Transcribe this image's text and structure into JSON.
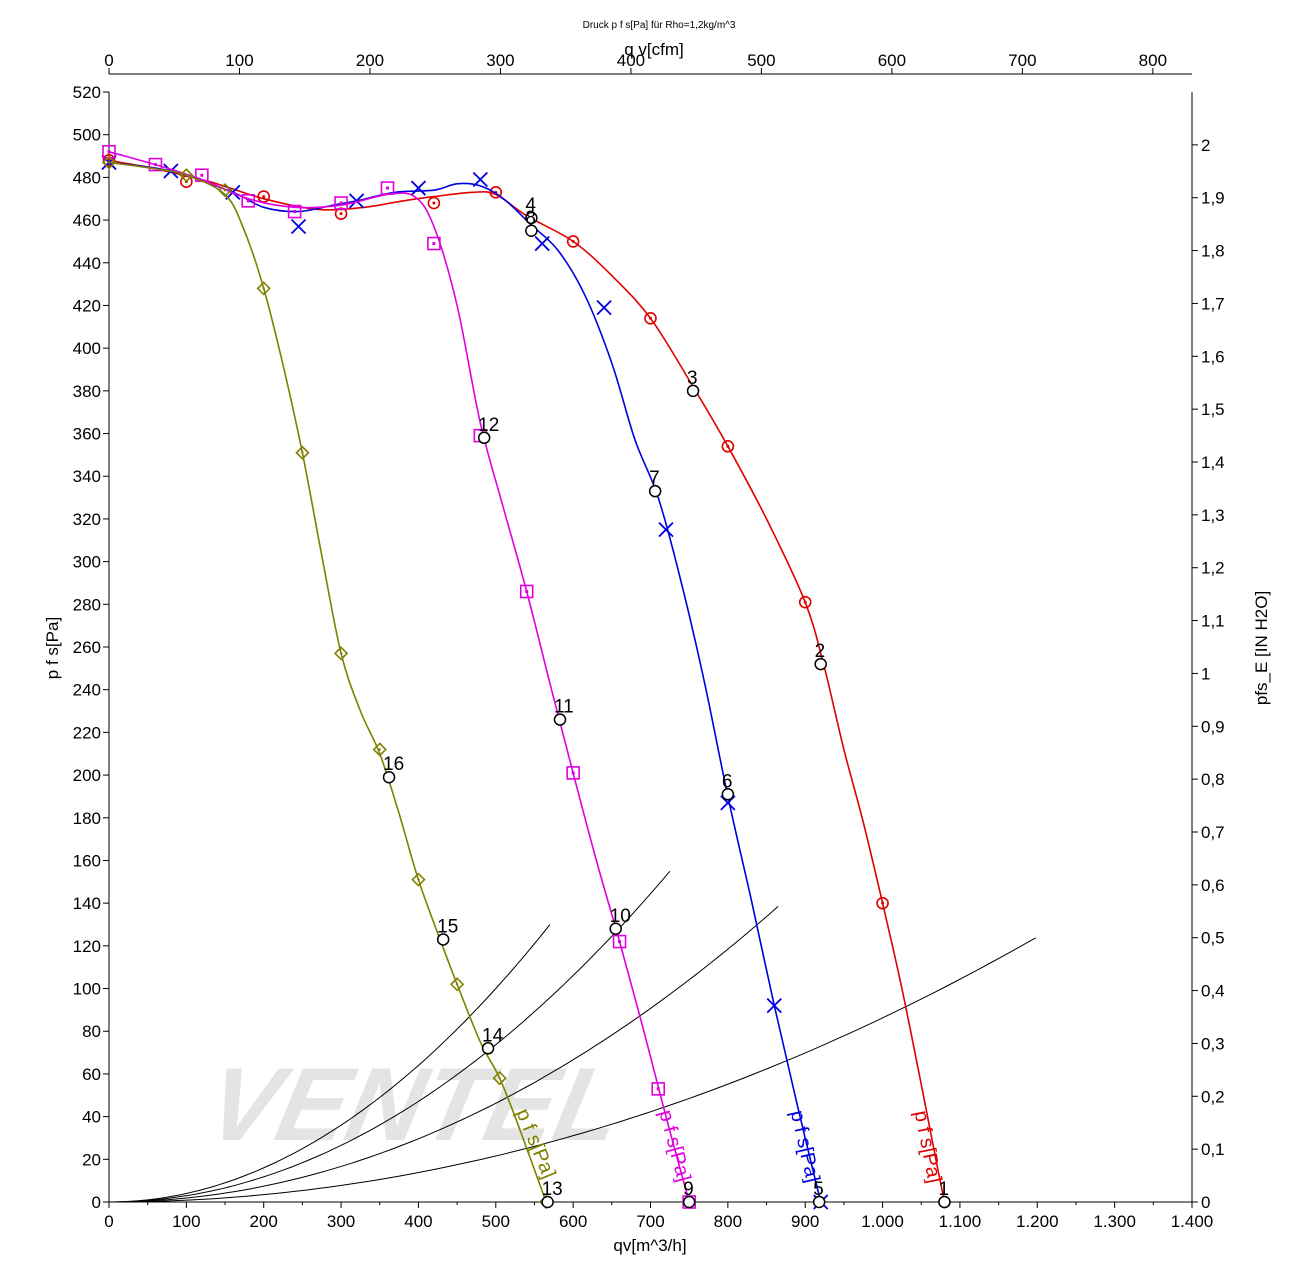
{
  "chart_data": {
    "type": "line",
    "title": "Druck p f s[Pa] für Rho=1,2kg/m^3",
    "xlabel": "qv[m^3/h]",
    "ylabel": "p f s[Pa]",
    "top_xlabel": "q v[cfm]",
    "right_ylabel": "pfs_E [IN H2O]",
    "watermark": "VENTEL",
    "xlim": [
      0,
      1400
    ],
    "ylim": [
      0,
      520
    ],
    "top_xlim": [
      0,
      830
    ],
    "right_ylim": [
      0,
      2.1
    ],
    "x_ticks": [
      "0",
      "100",
      "200",
      "300",
      "400",
      "500",
      "600",
      "700",
      "800",
      "900",
      "1.000",
      "1.100",
      "1.200",
      "1.300",
      "1.400"
    ],
    "y_ticks": [
      "0",
      "20",
      "40",
      "60",
      "80",
      "100",
      "120",
      "140",
      "160",
      "180",
      "200",
      "220",
      "240",
      "260",
      "280",
      "300",
      "320",
      "340",
      "360",
      "380",
      "400",
      "420",
      "440",
      "460",
      "480",
      "500",
      "520"
    ],
    "top_ticks": [
      "0",
      "100",
      "200",
      "300",
      "400",
      "500",
      "600",
      "700",
      "800"
    ],
    "right_ticks": [
      "0",
      "0,1",
      "0,2",
      "0,3",
      "0,4",
      "0,5",
      "0,6",
      "0,7",
      "0,8",
      "0,9",
      "1",
      "1,1",
      "1,2",
      "1,3",
      "1,4",
      "1,5",
      "1,6",
      "1,7",
      "1,8",
      "1,9",
      "2"
    ],
    "grid": false,
    "series": [
      {
        "label": "p f s[Pa]",
        "color": "#e00000",
        "marker": "circle-dot",
        "x": [
          0,
          100,
          200,
          300,
          420,
          500,
          600,
          700,
          800,
          900,
          1000,
          1080
        ],
        "y": [
          488,
          478,
          471,
          463,
          468,
          473,
          450,
          414,
          354,
          281,
          140,
          0
        ],
        "curve": [
          [
            0,
            488
          ],
          [
            60,
            484
          ],
          [
            130,
            478
          ],
          [
            200,
            470
          ],
          [
            270,
            465
          ],
          [
            330,
            466
          ],
          [
            380,
            469
          ],
          [
            420,
            471
          ],
          [
            470,
            473
          ],
          [
            500,
            472
          ],
          [
            540,
            462
          ],
          [
            600,
            450
          ],
          [
            650,
            434
          ],
          [
            700,
            414
          ],
          [
            750,
            385
          ],
          [
            800,
            354
          ],
          [
            850,
            320
          ],
          [
            900,
            281
          ],
          [
            925,
            250
          ],
          [
            950,
            212
          ],
          [
            975,
            178
          ],
          [
            1000,
            140
          ],
          [
            1025,
            100
          ],
          [
            1050,
            55
          ],
          [
            1070,
            18
          ],
          [
            1080,
            0
          ]
        ]
      },
      {
        "label": "p f s[Pa]",
        "color": "#0000e0",
        "marker": "x",
        "x": [
          0,
          80,
          160,
          245,
          320,
          400,
          480,
          560,
          640,
          720,
          800,
          860,
          920
        ],
        "y": [
          487,
          483,
          473,
          457,
          469,
          475,
          479,
          449,
          419,
          315,
          187,
          92,
          0
        ],
        "curve": [
          [
            0,
            487
          ],
          [
            80,
            483
          ],
          [
            160,
            473
          ],
          [
            200,
            466
          ],
          [
            245,
            464
          ],
          [
            290,
            467
          ],
          [
            320,
            469
          ],
          [
            370,
            473
          ],
          [
            420,
            474
          ],
          [
            450,
            477
          ],
          [
            480,
            476
          ],
          [
            510,
            470
          ],
          [
            545,
            458
          ],
          [
            580,
            446
          ],
          [
            615,
            425
          ],
          [
            650,
            393
          ],
          [
            680,
            357
          ],
          [
            710,
            330
          ],
          [
            740,
            290
          ],
          [
            770,
            243
          ],
          [
            800,
            190
          ],
          [
            830,
            142
          ],
          [
            860,
            92
          ],
          [
            890,
            45
          ],
          [
            920,
            0
          ]
        ]
      },
      {
        "label": "p f s[Pa]",
        "color": "#e000e0",
        "marker": "square-dot",
        "x": [
          0,
          60,
          120,
          180,
          240,
          300,
          360,
          420,
          480,
          540,
          600,
          660,
          710,
          750
        ],
        "y": [
          492,
          486,
          481,
          469,
          464,
          468,
          475,
          449,
          359,
          286,
          201,
          122,
          53,
          0
        ],
        "curve": [
          [
            0,
            492
          ],
          [
            60,
            486
          ],
          [
            120,
            479
          ],
          [
            180,
            470
          ],
          [
            240,
            466
          ],
          [
            300,
            467
          ],
          [
            360,
            472
          ],
          [
            395,
            471
          ],
          [
            420,
            457
          ],
          [
            450,
            420
          ],
          [
            480,
            365
          ],
          [
            510,
            325
          ],
          [
            540,
            286
          ],
          [
            570,
            243
          ],
          [
            600,
            201
          ],
          [
            630,
            160
          ],
          [
            660,
            122
          ],
          [
            690,
            82
          ],
          [
            720,
            40
          ],
          [
            750,
            0
          ]
        ]
      },
      {
        "label": "p f s[Pa]",
        "color": "#808000",
        "marker": "diamond",
        "x": [
          0,
          100,
          150,
          200,
          250,
          300,
          350,
          400,
          450,
          505,
          565
        ],
        "y": [
          487,
          481,
          474,
          428,
          351,
          257,
          212,
          151,
          102,
          58,
          0
        ],
        "curve": [
          [
            0,
            487
          ],
          [
            60,
            484
          ],
          [
            100,
            481
          ],
          [
            150,
            472
          ],
          [
            175,
            455
          ],
          [
            200,
            428
          ],
          [
            225,
            392
          ],
          [
            250,
            351
          ],
          [
            275,
            303
          ],
          [
            300,
            257
          ],
          [
            325,
            230
          ],
          [
            350,
            210
          ],
          [
            375,
            182
          ],
          [
            400,
            151
          ],
          [
            430,
            121
          ],
          [
            450,
            102
          ],
          [
            480,
            75
          ],
          [
            505,
            58
          ],
          [
            530,
            35
          ],
          [
            565,
            0
          ]
        ]
      }
    ],
    "system_curves": [
      {
        "k": 0.0004,
        "x_end": 570
      },
      {
        "k": 0.0001851,
        "x_end": 865
      },
      {
        "k": 0.0002947,
        "x_end": 725
      },
      {
        "k": 8.625e-05,
        "x_end": 1198
      }
    ],
    "operating_points": [
      {
        "label": "1",
        "x": 1080,
        "y": 0
      },
      {
        "label": "2",
        "x": 920,
        "y": 252
      },
      {
        "label": "3",
        "x": 755,
        "y": 380
      },
      {
        "label": "4",
        "x": 546,
        "y": 461
      },
      {
        "label": "5",
        "x": 918,
        "y": 0
      },
      {
        "label": "6",
        "x": 800,
        "y": 191
      },
      {
        "label": "7",
        "x": 706,
        "y": 333
      },
      {
        "label": "8",
        "x": 546,
        "y": 455
      },
      {
        "label": "9",
        "x": 750,
        "y": 0
      },
      {
        "label": "10",
        "x": 655,
        "y": 128
      },
      {
        "label": "11",
        "x": 583,
        "y": 226
      },
      {
        "label": "12",
        "x": 485,
        "y": 358
      },
      {
        "label": "13",
        "x": 567,
        "y": 0
      },
      {
        "label": "14",
        "x": 490,
        "y": 72
      },
      {
        "label": "15",
        "x": 432,
        "y": 123
      },
      {
        "label": "16",
        "x": 362,
        "y": 199
      }
    ]
  }
}
